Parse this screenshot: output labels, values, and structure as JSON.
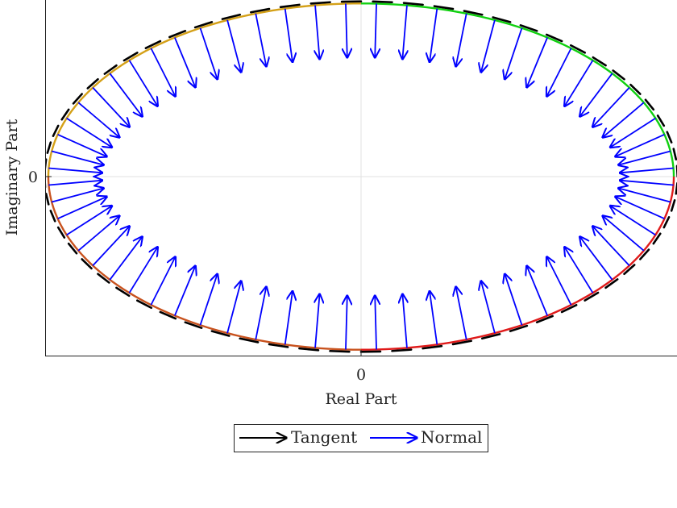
{
  "chart_data": {
    "type": "line",
    "title": "",
    "xlabel": "Real Part",
    "ylabel": "Imaginary Part",
    "xlim": [
      -1.0,
      1.0
    ],
    "ylim": [
      -1.0,
      1.0
    ],
    "x_ticks": [
      0
    ],
    "y_ticks": [
      0
    ],
    "x_tick_labels": [
      "0"
    ],
    "y_tick_labels": [
      "0"
    ],
    "grid": true,
    "curve": {
      "shape": "ellipse",
      "center": [
        0,
        0
      ],
      "semi_axis_real": 0.995,
      "semi_axis_imag": 0.985,
      "segment_colors": [
        "#10d010",
        "#d4a017",
        "#c8521e",
        "#e01a1a"
      ]
    },
    "series": [
      {
        "name": "Tangent",
        "kind": "tangent",
        "color": "#000000",
        "arrow_count": 64,
        "style": "dashed"
      },
      {
        "name": "Normal",
        "kind": "normal",
        "color": "#0000ff",
        "arrow_count": 64,
        "arrow_length": 0.18,
        "direction": "inward"
      }
    ],
    "legend": {
      "placement": "bottom-center",
      "entries": [
        "Tangent",
        "Normal"
      ]
    }
  }
}
